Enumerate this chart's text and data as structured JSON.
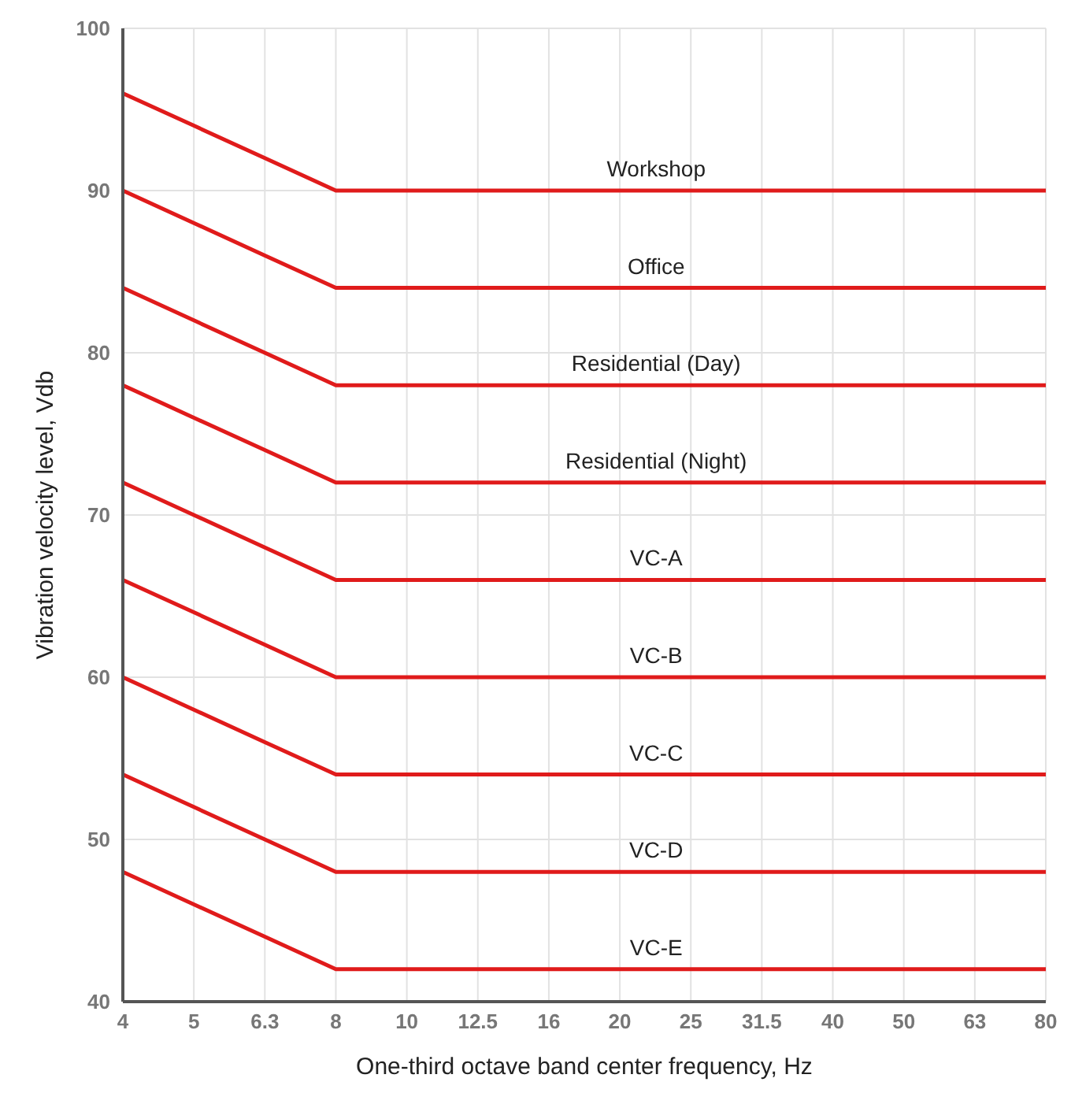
{
  "chart_data": {
    "type": "line",
    "xlabel": "One-third octave band center frequency, Hz",
    "ylabel": "Vibration velocity level, Vdb",
    "categories": [
      "4",
      "5",
      "6.3",
      "8",
      "10",
      "12.5",
      "16",
      "20",
      "25",
      "31.5",
      "40",
      "50",
      "63",
      "80"
    ],
    "ylim": [
      40,
      100
    ],
    "yticks": [
      40,
      50,
      60,
      70,
      80,
      90,
      100
    ],
    "grid": true,
    "legend": false,
    "marker": "none",
    "line_style": "solid",
    "series": [
      {
        "name": "Workshop",
        "color": "#e01b1b",
        "values": [
          96,
          94,
          92,
          90,
          90,
          90,
          90,
          90,
          90,
          90,
          90,
          90,
          90,
          90
        ]
      },
      {
        "name": "Office",
        "color": "#e01b1b",
        "values": [
          90,
          88,
          86,
          84,
          84,
          84,
          84,
          84,
          84,
          84,
          84,
          84,
          84,
          84
        ]
      },
      {
        "name": "Residential (Day)",
        "color": "#e01b1b",
        "values": [
          84,
          82,
          80,
          78,
          78,
          78,
          78,
          78,
          78,
          78,
          78,
          78,
          78,
          78
        ]
      },
      {
        "name": "Residential (Night)",
        "color": "#e01b1b",
        "values": [
          78,
          76,
          74,
          72,
          72,
          72,
          72,
          72,
          72,
          72,
          72,
          72,
          72,
          72
        ]
      },
      {
        "name": "VC-A",
        "color": "#e01b1b",
        "values": [
          72,
          70,
          68,
          66,
          66,
          66,
          66,
          66,
          66,
          66,
          66,
          66,
          66,
          66
        ]
      },
      {
        "name": "VC-B",
        "color": "#e01b1b",
        "values": [
          66,
          64,
          62,
          60,
          60,
          60,
          60,
          60,
          60,
          60,
          60,
          60,
          60,
          60
        ]
      },
      {
        "name": "VC-C",
        "color": "#e01b1b",
        "values": [
          60,
          58,
          56,
          54,
          54,
          54,
          54,
          54,
          54,
          54,
          54,
          54,
          54,
          54
        ]
      },
      {
        "name": "VC-D",
        "color": "#e01b1b",
        "values": [
          54,
          52,
          50,
          48,
          48,
          48,
          48,
          48,
          48,
          48,
          48,
          48,
          48,
          48
        ]
      },
      {
        "name": "VC-E",
        "color": "#e01b1b",
        "values": [
          48,
          46,
          44,
          42,
          42,
          42,
          42,
          42,
          42,
          42,
          42,
          42,
          42,
          42
        ]
      }
    ]
  }
}
